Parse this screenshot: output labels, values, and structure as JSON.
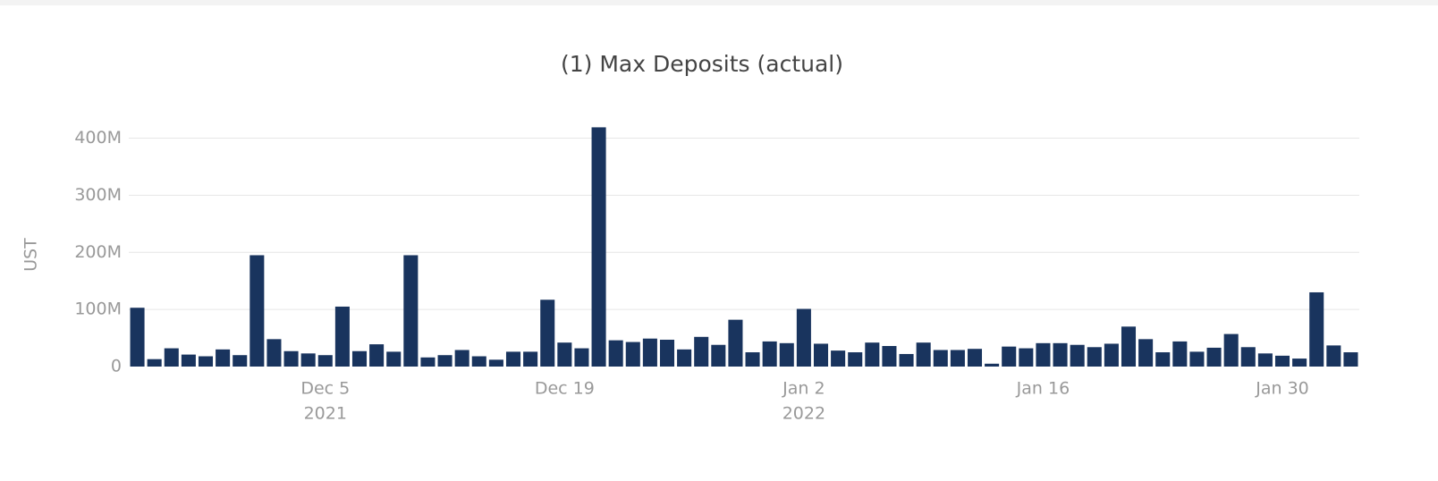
{
  "chart_data": {
    "type": "bar",
    "title": "(1) Max Deposits (actual)",
    "y_label": "UST",
    "color": "#19345e",
    "grid": true,
    "categories": [
      "2021-11-24",
      "2021-11-25",
      "2021-11-26",
      "2021-11-27",
      "2021-11-28",
      "2021-11-29",
      "2021-11-30",
      "2021-12-01",
      "2021-12-02",
      "2021-12-03",
      "2021-12-04",
      "2021-12-05",
      "2021-12-06",
      "2021-12-07",
      "2021-12-08",
      "2021-12-09",
      "2021-12-10",
      "2021-12-11",
      "2021-12-12",
      "2021-12-13",
      "2021-12-14",
      "2021-12-15",
      "2021-12-16",
      "2021-12-17",
      "2021-12-18",
      "2021-12-19",
      "2021-12-20",
      "2021-12-21",
      "2021-12-22",
      "2021-12-23",
      "2021-12-24",
      "2021-12-25",
      "2021-12-26",
      "2021-12-27",
      "2021-12-28",
      "2021-12-29",
      "2021-12-30",
      "2021-12-31",
      "2022-01-01",
      "2022-01-02",
      "2022-01-03",
      "2022-01-04",
      "2022-01-05",
      "2022-01-06",
      "2022-01-07",
      "2022-01-08",
      "2022-01-09",
      "2022-01-10",
      "2022-01-11",
      "2022-01-12",
      "2022-01-13",
      "2022-01-14",
      "2022-01-15",
      "2022-01-16",
      "2022-01-17",
      "2022-01-18",
      "2022-01-19",
      "2022-01-20",
      "2022-01-21",
      "2022-01-22",
      "2022-01-23",
      "2022-01-24",
      "2022-01-25",
      "2022-01-26",
      "2022-01-27",
      "2022-01-28",
      "2022-01-29",
      "2022-01-30",
      "2022-01-31",
      "2022-02-01",
      "2022-02-02",
      "2022-02-03"
    ],
    "values": [
      103000000,
      13000000,
      32000000,
      21000000,
      18000000,
      30000000,
      20000000,
      195000000,
      48000000,
      27000000,
      23000000,
      20000000,
      105000000,
      27000000,
      39000000,
      26000000,
      195000000,
      16000000,
      20000000,
      29000000,
      18000000,
      12000000,
      26000000,
      26000000,
      117000000,
      42000000,
      32000000,
      419000000,
      46000000,
      43000000,
      49000000,
      47000000,
      30000000,
      52000000,
      38000000,
      82000000,
      25000000,
      44000000,
      41000000,
      101000000,
      40000000,
      28000000,
      25000000,
      42000000,
      36000000,
      22000000,
      42000000,
      29000000,
      29000000,
      31000000,
      5000000,
      35000000,
      32000000,
      41000000,
      41000000,
      38000000,
      34000000,
      40000000,
      70000000,
      48000000,
      25000000,
      44000000,
      26000000,
      33000000,
      57000000,
      34000000,
      23000000,
      19000000,
      14000000,
      130000000,
      37000000,
      25000000
    ],
    "ylim": [
      0,
      440000000
    ],
    "yticks": [
      0,
      {
        "value": 100000000,
        "label": "100M"
      },
      {
        "value": 200000000,
        "label": "200M"
      },
      {
        "value": 300000000,
        "label": "300M"
      },
      {
        "value": 400000000,
        "label": "400M"
      }
    ],
    "xticks": [
      {
        "value": "2021-12-05",
        "label": "Dec 5",
        "year": "2021"
      },
      {
        "value": "2021-12-19",
        "label": "Dec 19"
      },
      {
        "value": "2022-01-02",
        "label": "Jan 2",
        "year": "2022"
      },
      {
        "value": "2022-01-16",
        "label": "Jan 16"
      },
      {
        "value": "2022-01-30",
        "label": "Jan 30"
      }
    ]
  }
}
